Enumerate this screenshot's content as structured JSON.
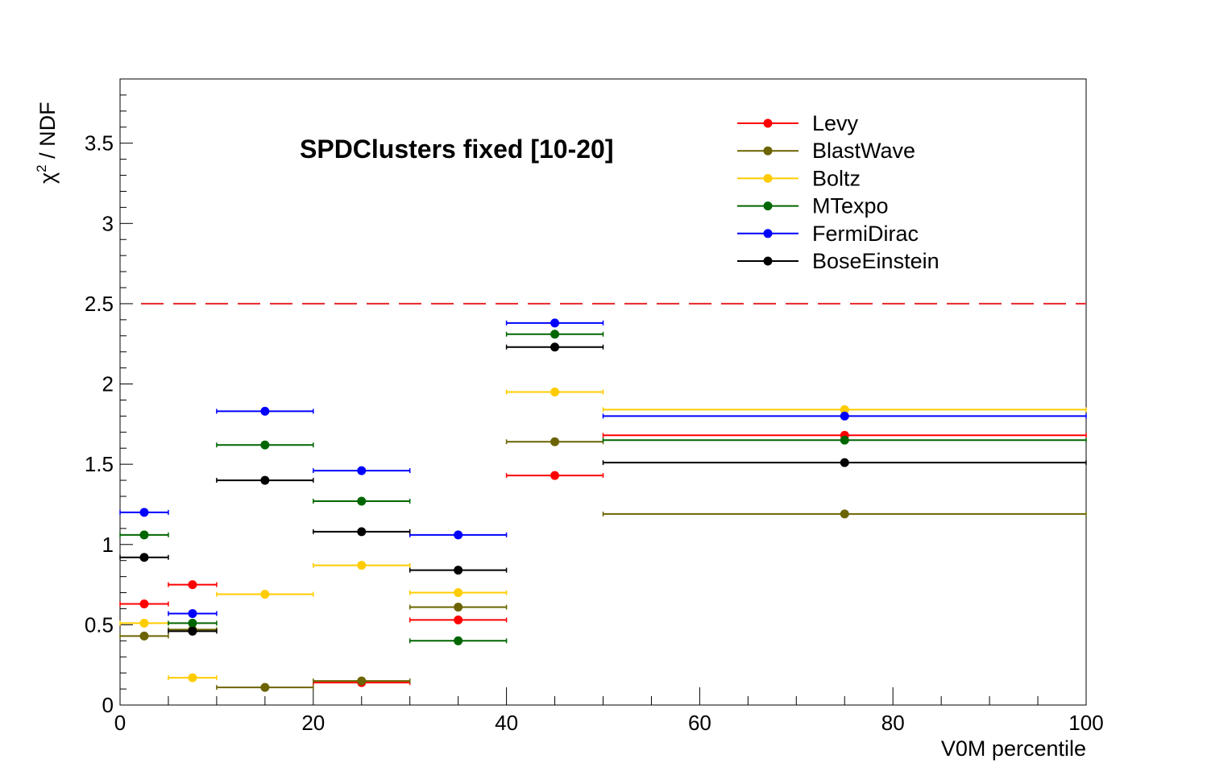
{
  "chart_data": {
    "type": "scatter",
    "title": "SPDClusters fixed [10-20]",
    "xlabel": "V0M percentile",
    "ylabel": "χ² / NDF",
    "ylabel_parts": {
      "symbol": "χ",
      "sup": "2",
      "rest": " / NDF"
    },
    "xlim": [
      0,
      100
    ],
    "ylim": [
      0,
      3.9
    ],
    "x_ticks": [
      "0",
      "20",
      "40",
      "60",
      "80",
      "100"
    ],
    "y_ticks": [
      "0",
      "0.5",
      "1",
      "1.5",
      "2",
      "2.5",
      "3",
      "3.5"
    ],
    "legend_position": "top-right",
    "reference_line": {
      "y": 2.5,
      "color": "#e8262a",
      "style": "dashed"
    },
    "bins": [
      [
        0,
        5
      ],
      [
        5,
        10
      ],
      [
        10,
        20
      ],
      [
        20,
        30
      ],
      [
        30,
        40
      ],
      [
        40,
        50
      ],
      [
        50,
        100
      ]
    ],
    "x": [
      2.5,
      7.5,
      15,
      25,
      35,
      45,
      75
    ],
    "series": [
      {
        "name": "Levy",
        "color": "#ff0000",
        "values": [
          0.63,
          0.75,
          null,
          0.14,
          0.53,
          1.43,
          1.68
        ]
      },
      {
        "name": "BlastWave",
        "color": "#6b6400",
        "values": [
          0.43,
          0.47,
          0.11,
          0.15,
          0.61,
          1.64,
          1.19
        ]
      },
      {
        "name": "Boltz",
        "color": "#ffcc00",
        "values": [
          0.51,
          0.17,
          0.69,
          0.87,
          0.7,
          1.95,
          1.84
        ]
      },
      {
        "name": "MTexpo",
        "color": "#006600",
        "values": [
          1.06,
          0.51,
          1.62,
          1.27,
          0.4,
          2.31,
          1.65
        ]
      },
      {
        "name": "FermiDirac",
        "color": "#0000ff",
        "values": [
          1.2,
          0.57,
          1.83,
          1.46,
          1.06,
          2.38,
          1.8
        ]
      },
      {
        "name": "BoseEinstein",
        "color": "#000000",
        "values": [
          0.92,
          0.46,
          1.4,
          1.08,
          0.84,
          2.23,
          1.51
        ]
      }
    ]
  }
}
